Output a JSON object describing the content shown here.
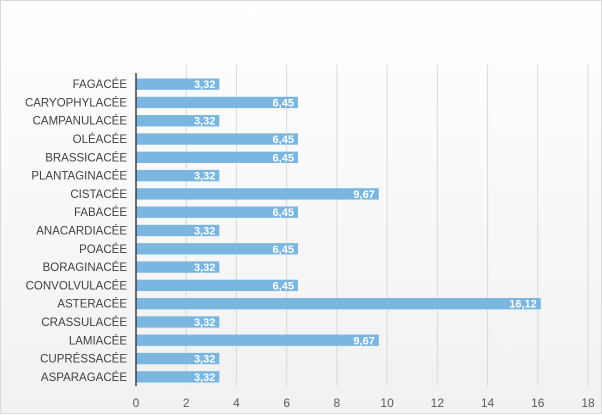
{
  "chart_data": {
    "type": "bar",
    "orientation": "horizontal",
    "categories": [
      "FAGACÉE",
      "CARYOPHYLACÉE",
      "CAMPANULACÉE",
      "OLÉACÉE",
      "BRASSICACÉE",
      "PLANTAGINACÉE",
      "CISTACÉE",
      "FABACÉE",
      "ANACARDIACÉE",
      "POACÉE",
      "BORAGINACÉE",
      "CONVOLVULACÉE",
      "ASTERACÉE",
      "CRASSULACÉE",
      "LAMIACÉE",
      "CUPRÉSSACÉE",
      "ASPARAGACÉE"
    ],
    "values": [
      3.32,
      6.45,
      3.32,
      6.45,
      6.45,
      3.32,
      9.67,
      6.45,
      3.32,
      6.45,
      3.32,
      6.45,
      16.12,
      3.32,
      9.67,
      3.32,
      3.32
    ],
    "data_labels": [
      "3,32",
      "6,45",
      "3,32",
      "6,45",
      "6,45",
      "3,32",
      "9,67",
      "6,45",
      "3,32",
      "6,45",
      "3,32",
      "6,45",
      "16,12",
      "3,32",
      "9,67",
      "3,32",
      "3,32"
    ],
    "x_ticks": [
      "0",
      "2",
      "4",
      "6",
      "8",
      "10",
      "12",
      "14",
      "16",
      "18"
    ],
    "xlim": [
      0,
      18
    ],
    "bar_color": "#7ab6df",
    "grid": true,
    "title": "",
    "xlabel": "",
    "ylabel": ""
  }
}
